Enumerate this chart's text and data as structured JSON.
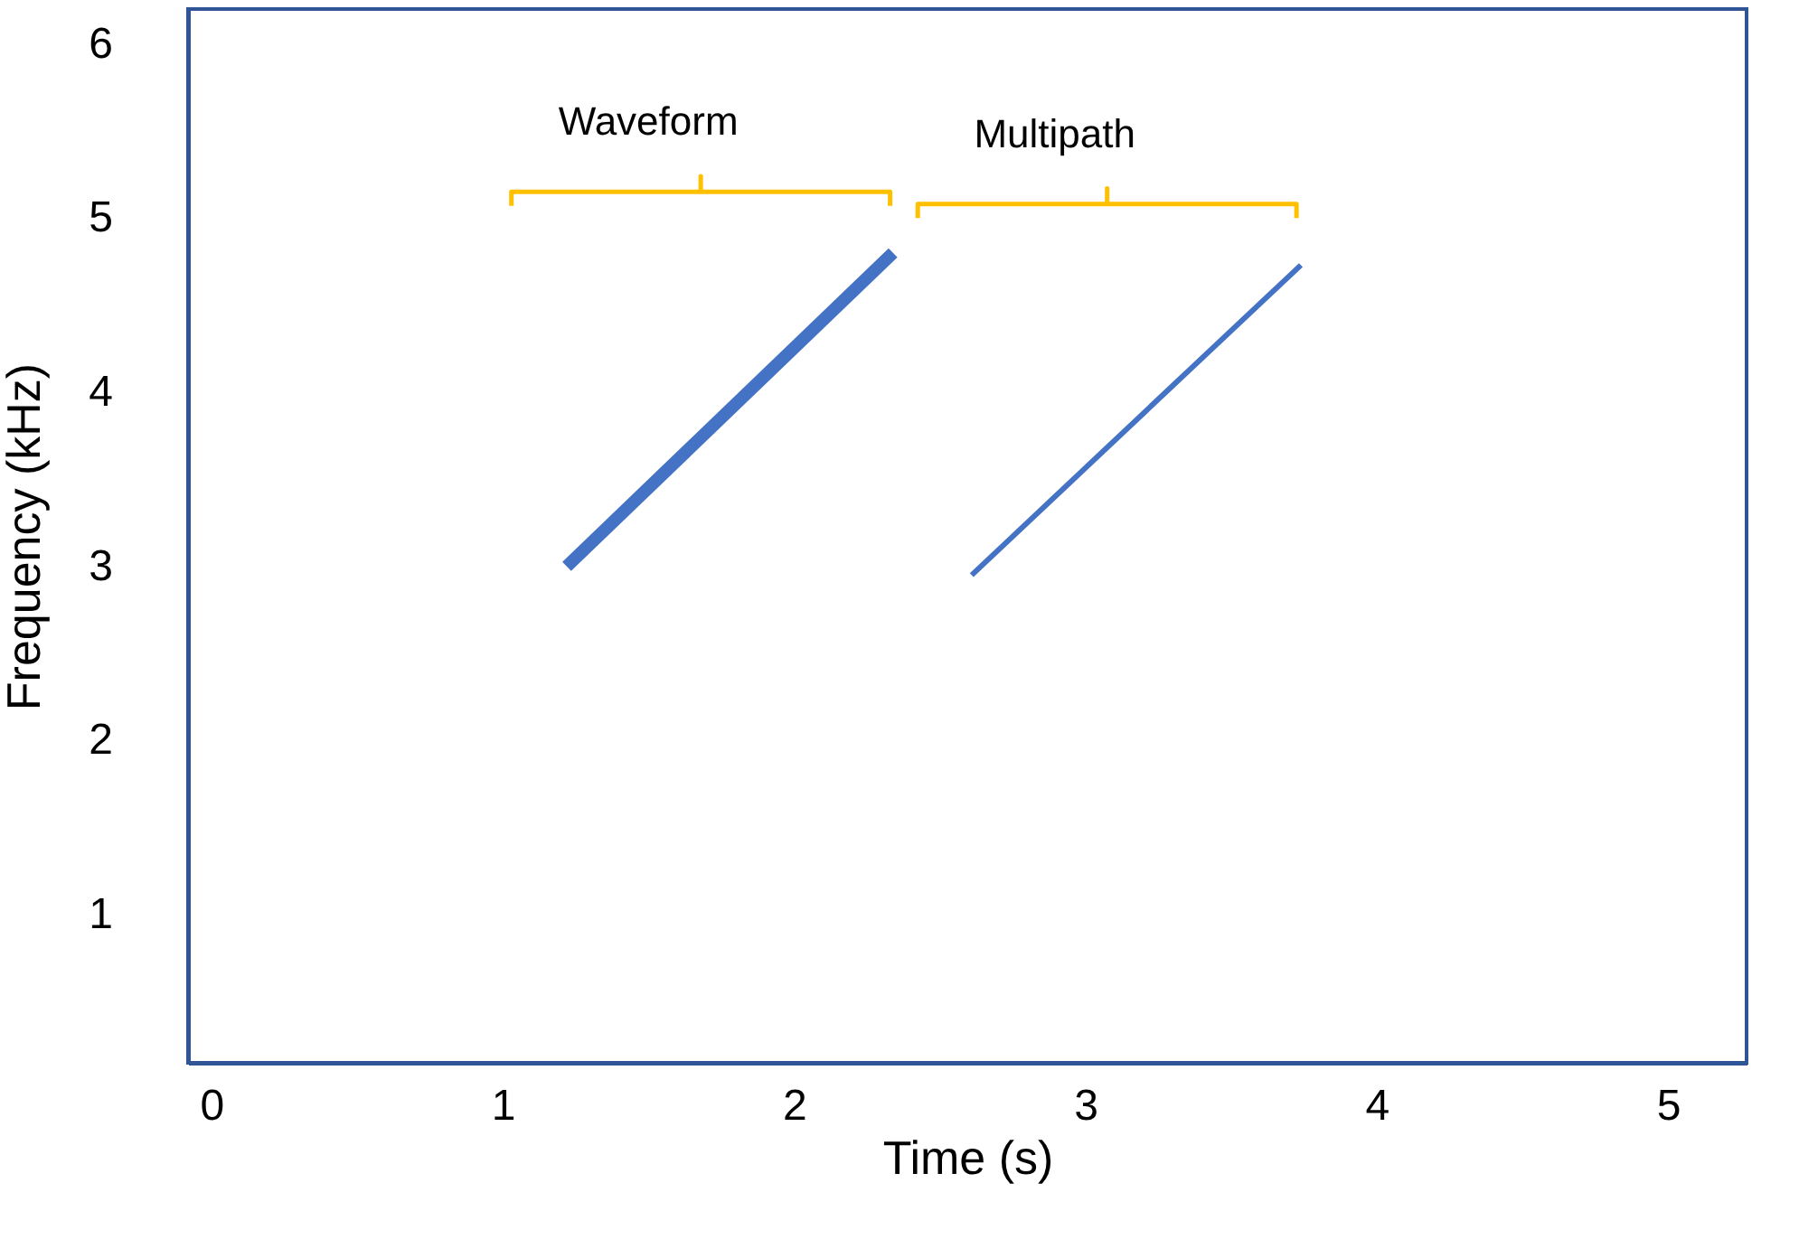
{
  "chart_data": {
    "type": "line",
    "xlabel": "Time (s)",
    "ylabel": "Frequency (kHz)",
    "xlim": [
      -0.08,
      5.27
    ],
    "xticks": [
      0,
      1,
      2,
      3,
      4,
      5
    ],
    "ylim": [
      0.15,
      6.2
    ],
    "yticks": [
      1,
      2,
      3,
      4,
      5,
      6
    ],
    "grid": false,
    "annotations": [
      "Waveform",
      "Multipath"
    ],
    "series": [
      {
        "color": "#4472c4",
        "x": [
          1.22,
          2.34
        ],
        "values": [
          3.0,
          4.8
        ]
      },
      {
        "color": "#4472c4",
        "x": [
          2.61,
          3.74
        ],
        "values": [
          2.95,
          4.73
        ]
      }
    ]
  }
}
